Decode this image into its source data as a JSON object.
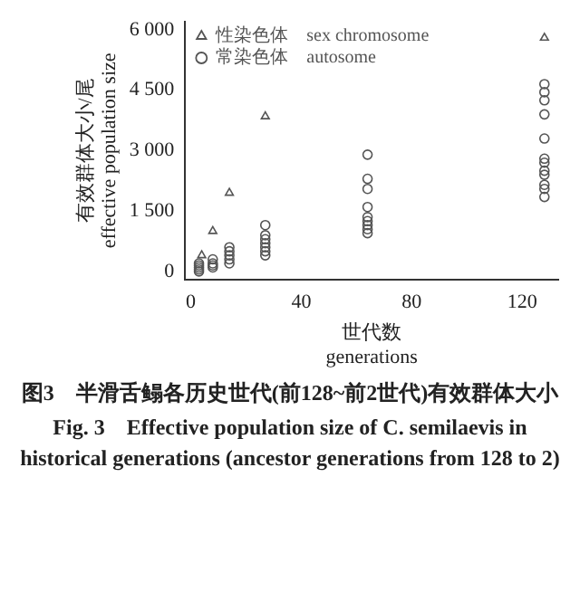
{
  "chart_data": {
    "type": "scatter",
    "xlabel": "世代数\ngenerations",
    "ylabel": "有效群体大小/尾\neffective population size",
    "xlim": [
      -2,
      133
    ],
    "ylim": [
      -200,
      6200
    ],
    "xticks": [
      0,
      40,
      80,
      120
    ],
    "yticks": [
      0,
      {
        "value": 1500,
        "label": "1 500"
      },
      {
        "value": 3000,
        "label": "3 000"
      },
      {
        "value": 4500,
        "label": "4 500"
      },
      {
        "value": 6000,
        "label": "6 000"
      }
    ],
    "grid": false,
    "legend": "top left",
    "series": [
      {
        "name": "性染色体    sex chromosome",
        "marker": "triangle",
        "color": "#555555",
        "x": [
          4,
          8,
          14,
          27,
          128
        ],
        "values": [
          400,
          1000,
          1950,
          3850,
          5800
        ]
      },
      {
        "name": "常染色体    autosome",
        "marker": "circle",
        "color": "#555555",
        "x": [
          3,
          3,
          3,
          3,
          3,
          8,
          8,
          8,
          8,
          14,
          14,
          14,
          14,
          14,
          27,
          27,
          27,
          27,
          27,
          27,
          27,
          64,
          64,
          64,
          64,
          64,
          64,
          64,
          64,
          64,
          128,
          128,
          128,
          128,
          128,
          128,
          128,
          128,
          128,
          128,
          128,
          128
        ],
        "values": [
          0,
          50,
          100,
          150,
          200,
          100,
          150,
          200,
          300,
          200,
          300,
          400,
          500,
          600,
          400,
          500,
          600,
          700,
          800,
          900,
          1150,
          950,
          1050,
          1150,
          1250,
          1350,
          1600,
          2050,
          2300,
          2900,
          1850,
          2050,
          2150,
          2400,
          2500,
          2700,
          2800,
          3300,
          3900,
          4250,
          4450,
          4650
        ]
      }
    ],
    "annotations": [
      "图3　半滑舌鳎各历史世代(前128~前2世代)有效群体大小",
      "Fig. 3　Effective population size of C. semilaevis in historical generations (ancestor generations from 128 to 2)"
    ]
  }
}
